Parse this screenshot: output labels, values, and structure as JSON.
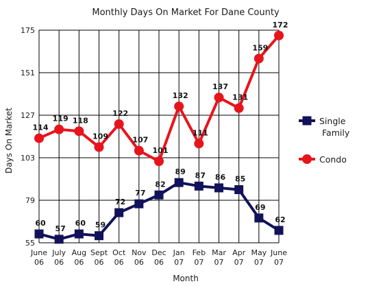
{
  "chart_data": {
    "type": "line",
    "title": "Monthly Days On Market For Dane County",
    "xlabel": "Month",
    "ylabel": "Days On Market",
    "categories": [
      [
        "June",
        "06"
      ],
      [
        "July",
        "06"
      ],
      [
        "Aug",
        "06"
      ],
      [
        "Sept",
        "06"
      ],
      [
        "Oct",
        "06"
      ],
      [
        "Nov",
        "06"
      ],
      [
        "Dec",
        "06"
      ],
      [
        "Jan",
        "07"
      ],
      [
        "Feb",
        "07"
      ],
      [
        "Mar",
        "07"
      ],
      [
        "Apr",
        "07"
      ],
      [
        "May",
        "07"
      ],
      [
        "June",
        "07"
      ]
    ],
    "yticks": [
      55,
      79,
      103,
      127,
      151,
      175
    ],
    "ylim": [
      55,
      175
    ],
    "grid": true,
    "legend_position": "right",
    "series": [
      {
        "name": "Single Family",
        "color": "#12125a",
        "marker": "square",
        "values": [
          60,
          57,
          60,
          59,
          72,
          77,
          82,
          89,
          87,
          86,
          85,
          69,
          62
        ]
      },
      {
        "name": "Condo",
        "color": "#e8141c",
        "marker": "circle",
        "values": [
          114,
          119,
          118,
          109,
          122,
          107,
          101,
          132,
          111,
          137,
          131,
          159,
          172
        ]
      }
    ]
  }
}
